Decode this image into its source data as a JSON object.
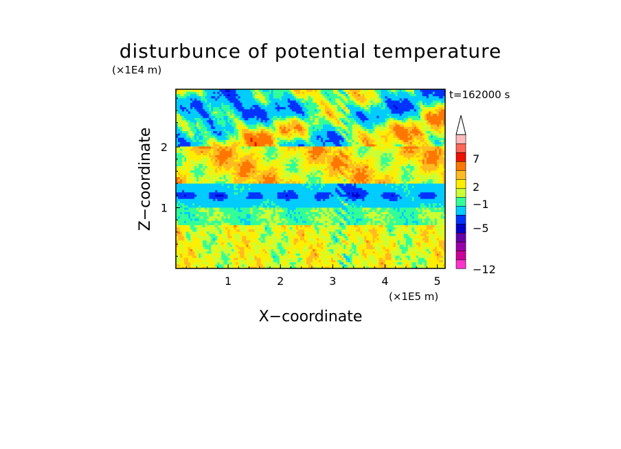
{
  "chart_data": {
    "type": "heatmap",
    "title": "disturbunce of potential temperature",
    "xlabel": "X−coordinate",
    "ylabel": "Z−coordinate",
    "x_unit": "(×1E5 m)",
    "y_unit": "(×1E4 m)",
    "time_label": "t=162000 s",
    "xlim": [
      0,
      5.15
    ],
    "ylim": [
      0,
      2.95
    ],
    "xticks": [
      "1",
      "2",
      "3",
      "4",
      "5"
    ],
    "yticks": [
      "1",
      "2"
    ],
    "colorbar": {
      "levels": [
        -12,
        -11,
        -10,
        -9,
        -8,
        -7,
        -6,
        -5,
        -4,
        -3,
        -2,
        -1,
        0,
        1,
        2,
        3,
        4,
        5,
        6,
        7,
        8,
        9,
        10
      ],
      "tick_labels": [
        "7",
        "2",
        "−1",
        "−5",
        "−12"
      ],
      "colors": [
        "#ff33cc",
        "#cc0099",
        "#9900aa",
        "#6600aa",
        "#0000cc",
        "#0033ff",
        "#00ccff",
        "#33ff99",
        "#ccff33",
        "#ffee00",
        "#ffbb22",
        "#ff7700",
        "#ee1100",
        "#ff6655",
        "#ffbbbb"
      ],
      "extend": "max"
    },
    "field_description": {
      "z_0_to_0.7": "positive (0 to 2), yellow/green with noisy patches",
      "z_0.7_to_1.0": "slightly negative (-1 to 0), cyan/green band",
      "z_1.0_to_1.4": "negative band (-1 to -5), cyan with dark blue streaks near z=1.2",
      "z_1.5_to_2.0": "positive (1 to 4), yellow/orange",
      "z_2.0_to_2.95": "alternating strong positive (up to 8) and negative (down to -6) cells"
    }
  }
}
